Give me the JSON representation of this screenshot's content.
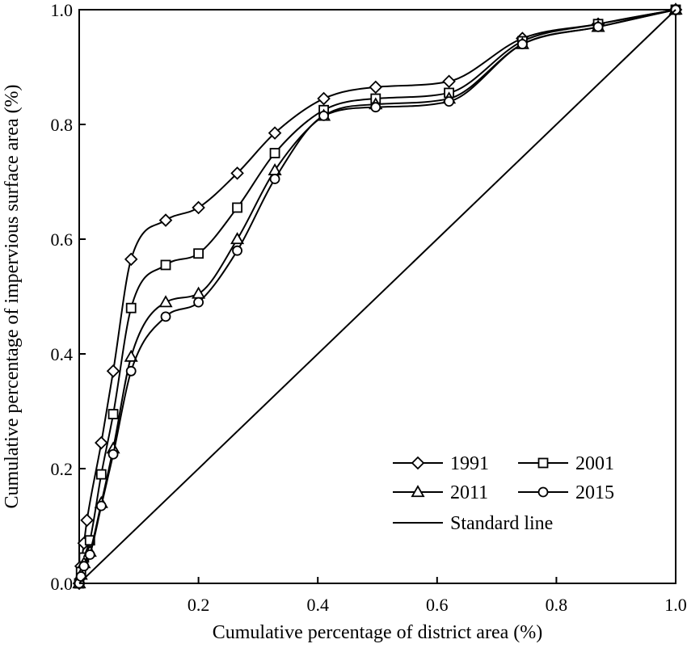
{
  "chart_data": {
    "type": "line",
    "xlabel": "Cumulative percentage of district area (%)",
    "ylabel": "Cumulative percentage of impervious surface area (%)",
    "xlim": [
      0,
      1
    ],
    "ylim": [
      0,
      1
    ],
    "x_ticks": [
      "0.2",
      "0.4",
      "0.6",
      "0.8",
      "1.0"
    ],
    "y_ticks": [
      "0.0",
      "0.2",
      "0.4",
      "0.6",
      "0.8",
      "1.0"
    ],
    "x_tick_values": [
      0.2,
      0.4,
      0.6,
      0.8,
      1.0
    ],
    "y_tick_values": [
      0.0,
      0.2,
      0.4,
      0.6,
      0.8,
      1.0
    ],
    "grid": false,
    "legend_position": "lower-right",
    "series": [
      {
        "name": "1991",
        "marker": "diamond",
        "x": [
          0,
          0.003,
          0.008,
          0.013,
          0.037,
          0.057,
          0.087,
          0.145,
          0.2,
          0.265,
          0.328,
          0.41,
          0.497,
          0.62,
          0.743,
          0.87,
          1.0
        ],
        "y": [
          0,
          0.03,
          0.07,
          0.11,
          0.245,
          0.37,
          0.565,
          0.633,
          0.655,
          0.715,
          0.785,
          0.845,
          0.865,
          0.875,
          0.95,
          0.975,
          1.0
        ]
      },
      {
        "name": "2001",
        "marker": "square",
        "x": [
          0,
          0.003,
          0.008,
          0.018,
          0.037,
          0.057,
          0.087,
          0.145,
          0.2,
          0.265,
          0.328,
          0.41,
          0.497,
          0.62,
          0.743,
          0.87,
          1.0
        ],
        "y": [
          0,
          0.02,
          0.045,
          0.075,
          0.19,
          0.295,
          0.48,
          0.555,
          0.575,
          0.655,
          0.75,
          0.825,
          0.845,
          0.855,
          0.945,
          0.975,
          1.0
        ]
      },
      {
        "name": "2011",
        "marker": "triangle",
        "x": [
          0,
          0.003,
          0.008,
          0.018,
          0.037,
          0.057,
          0.087,
          0.145,
          0.2,
          0.265,
          0.328,
          0.41,
          0.497,
          0.62,
          0.743,
          0.87,
          1.0
        ],
        "y": [
          0,
          0.015,
          0.035,
          0.055,
          0.14,
          0.235,
          0.395,
          0.49,
          0.505,
          0.6,
          0.72,
          0.815,
          0.835,
          0.845,
          0.94,
          0.97,
          1.0
        ]
      },
      {
        "name": "2015",
        "marker": "circle",
        "x": [
          0,
          0.003,
          0.008,
          0.018,
          0.037,
          0.057,
          0.087,
          0.145,
          0.2,
          0.265,
          0.328,
          0.41,
          0.497,
          0.62,
          0.743,
          0.87,
          1.0
        ],
        "y": [
          0,
          0.012,
          0.03,
          0.05,
          0.135,
          0.225,
          0.37,
          0.465,
          0.49,
          0.58,
          0.705,
          0.815,
          0.83,
          0.84,
          0.94,
          0.97,
          1.0
        ]
      },
      {
        "name": "Standard line",
        "marker": "none",
        "x": [
          0,
          1
        ],
        "y": [
          0,
          1
        ]
      }
    ]
  }
}
